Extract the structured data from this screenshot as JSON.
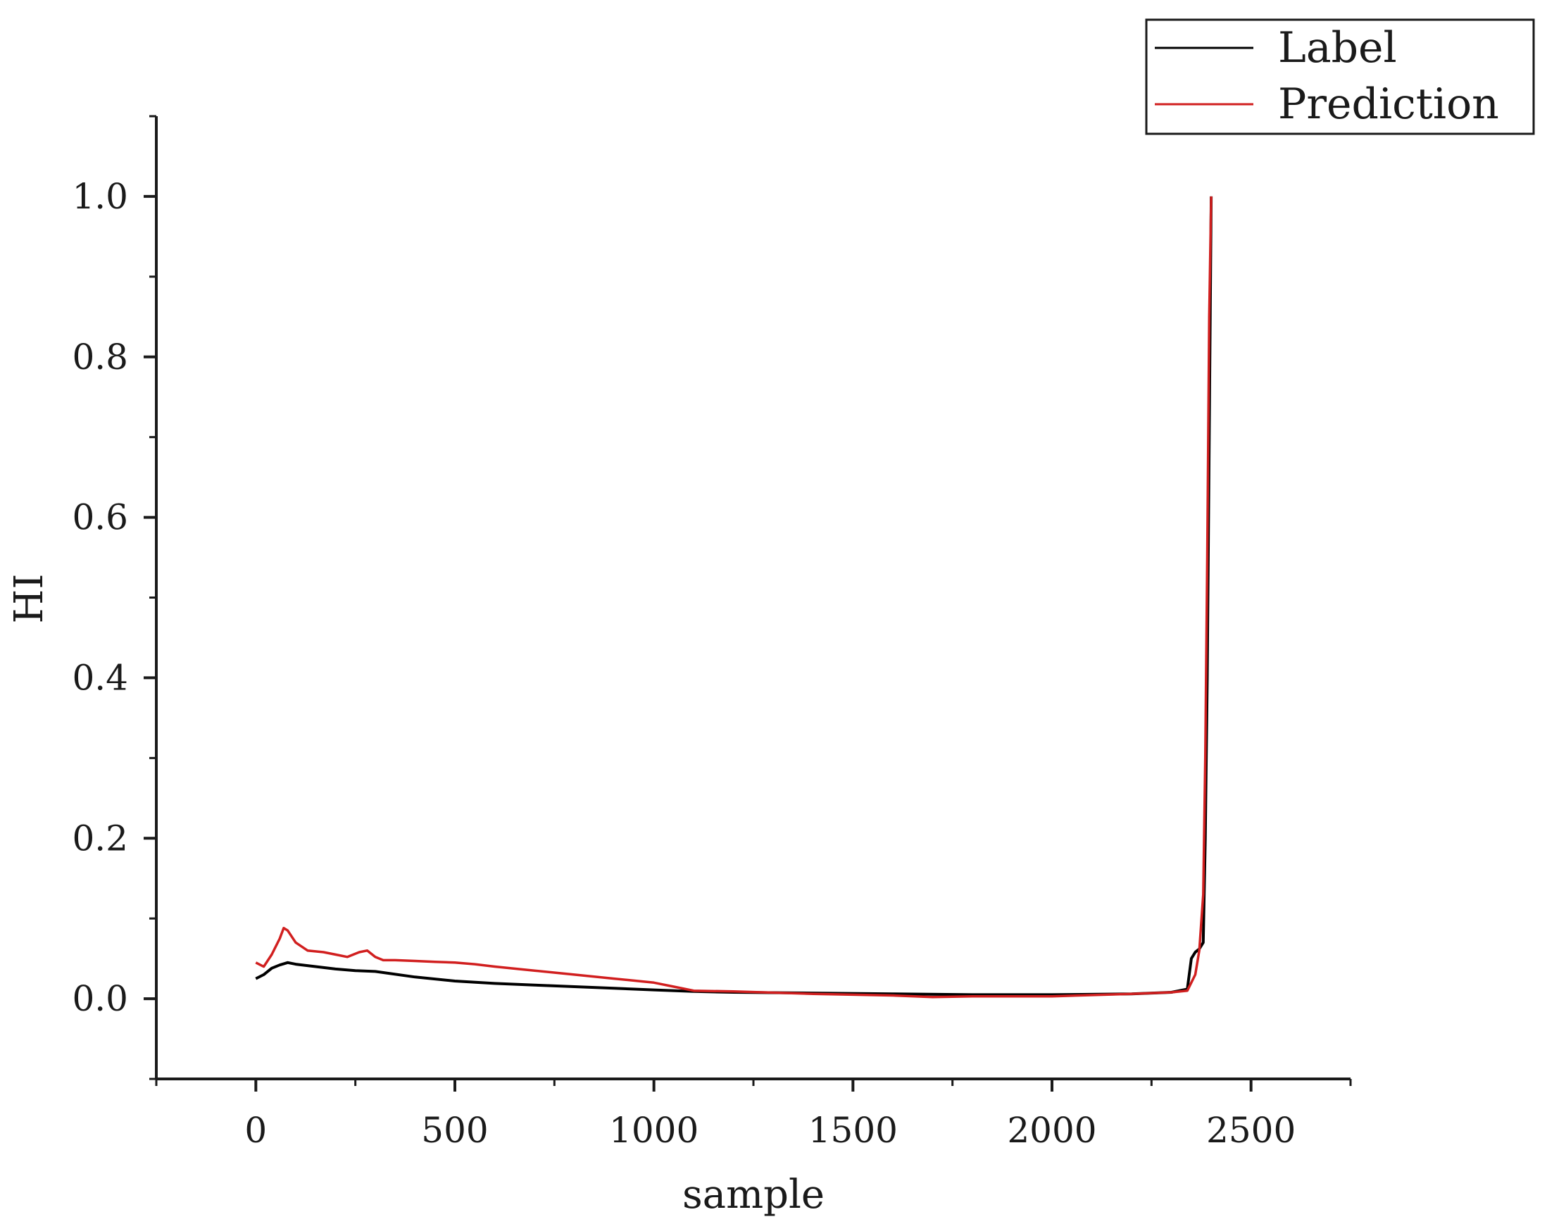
{
  "chart_data": {
    "type": "line",
    "title": "",
    "xlabel": "sample",
    "ylabel": "HI",
    "xlim": [
      -250,
      2750
    ],
    "ylim": [
      -0.1,
      1.1
    ],
    "x_ticks": [
      0,
      500,
      1000,
      1500,
      2000,
      2500
    ],
    "x_tick_labels": [
      "0",
      "500",
      "1000",
      "1500",
      "2000",
      "2500"
    ],
    "y_ticks": [
      0.0,
      0.2,
      0.4,
      0.6,
      0.8,
      1.0
    ],
    "y_tick_labels": [
      "0.0",
      "0.2",
      "0.4",
      "0.6",
      "0.8",
      "1.0"
    ],
    "grid": false,
    "legend_position": "top-right",
    "series": [
      {
        "name": "Label",
        "color": "#000000",
        "x": [
          0,
          20,
          40,
          60,
          80,
          100,
          150,
          200,
          250,
          300,
          400,
          500,
          600,
          700,
          800,
          900,
          1000,
          1100,
          1200,
          1400,
          1600,
          1800,
          2000,
          2200,
          2300,
          2340,
          2350,
          2360,
          2370,
          2380,
          2385,
          2390,
          2395,
          2400
        ],
        "y": [
          0.025,
          0.03,
          0.038,
          0.042,
          0.045,
          0.043,
          0.04,
          0.037,
          0.035,
          0.034,
          0.027,
          0.022,
          0.019,
          0.017,
          0.015,
          0.013,
          0.011,
          0.009,
          0.008,
          0.007,
          0.006,
          0.005,
          0.005,
          0.006,
          0.008,
          0.012,
          0.05,
          0.058,
          0.062,
          0.07,
          0.2,
          0.4,
          0.7,
          1.0
        ]
      },
      {
        "name": "Prediction",
        "color": "#d11f1f",
        "x": [
          0,
          20,
          40,
          60,
          70,
          80,
          100,
          130,
          170,
          200,
          230,
          260,
          280,
          300,
          320,
          350,
          400,
          450,
          500,
          550,
          600,
          700,
          800,
          900,
          1000,
          1050,
          1100,
          1200,
          1400,
          1600,
          1700,
          1800,
          2000,
          2200,
          2300,
          2340,
          2360,
          2370,
          2380,
          2385,
          2390,
          2395,
          2400
        ],
        "y": [
          0.045,
          0.04,
          0.055,
          0.075,
          0.088,
          0.085,
          0.07,
          0.06,
          0.058,
          0.055,
          0.052,
          0.058,
          0.06,
          0.052,
          0.048,
          0.048,
          0.047,
          0.046,
          0.045,
          0.043,
          0.04,
          0.035,
          0.03,
          0.025,
          0.02,
          0.015,
          0.01,
          0.009,
          0.006,
          0.004,
          0.002,
          0.003,
          0.003,
          0.006,
          0.008,
          0.01,
          0.03,
          0.06,
          0.13,
          0.3,
          0.55,
          0.85,
          1.0
        ]
      }
    ]
  }
}
